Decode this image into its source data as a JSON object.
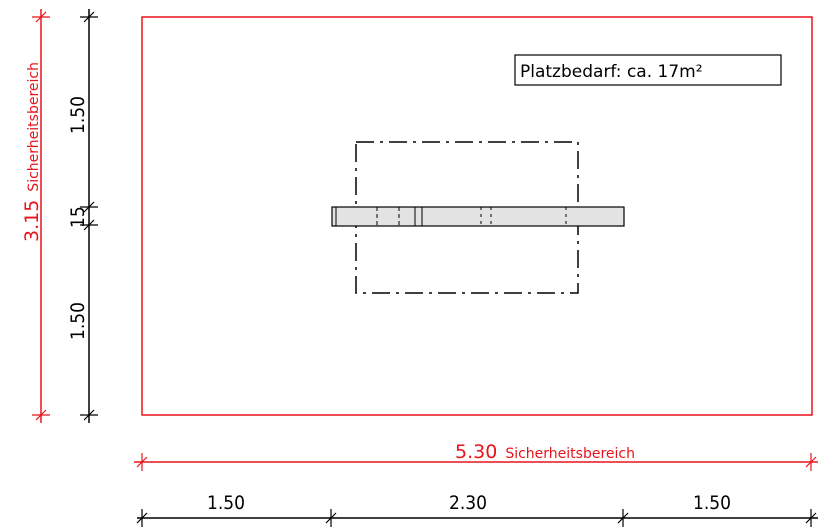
{
  "note": {
    "text": "Platzbedarf: ca. 17m²"
  },
  "safety_width": {
    "value": "5.30",
    "label": "Sicherheitsbereich"
  },
  "safety_height": {
    "value": "3.15",
    "label": "Sicherheitsbereich"
  },
  "bottom_dims": [
    "1.50",
    "2.30",
    "1.50"
  ],
  "left_dims": [
    "1.50",
    "15",
    "1.50"
  ],
  "colors": {
    "safety_red": "#e8131b",
    "dimension_black": "#000000",
    "object_fill": "#e3e3e3"
  }
}
